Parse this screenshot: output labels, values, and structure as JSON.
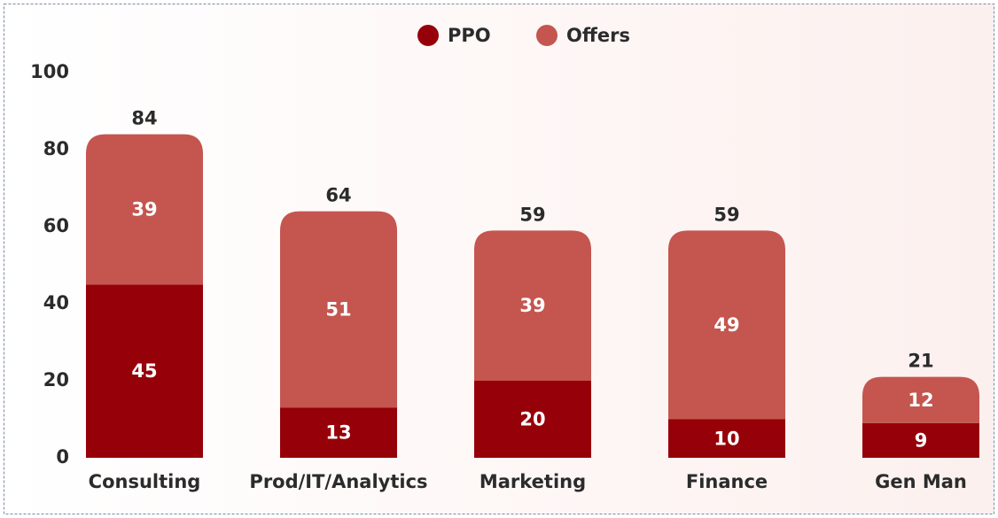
{
  "chart_data": {
    "type": "stacked_bar",
    "categories": [
      "Consulting",
      "Prod/IT/Analytics",
      "Marketing",
      "Finance",
      "Gen Man"
    ],
    "series": [
      {
        "name": "PPO",
        "color": "#960008",
        "values": [
          45,
          13,
          20,
          10,
          9
        ]
      },
      {
        "name": "Offers",
        "color": "#c4564f",
        "values": [
          39,
          51,
          39,
          49,
          12
        ]
      }
    ],
    "totals": [
      84,
      64,
      59,
      59,
      21
    ],
    "ylim": [
      0,
      100
    ],
    "yticks": [
      0,
      20,
      40,
      60,
      80,
      100
    ],
    "grid": false,
    "legend": "top"
  }
}
